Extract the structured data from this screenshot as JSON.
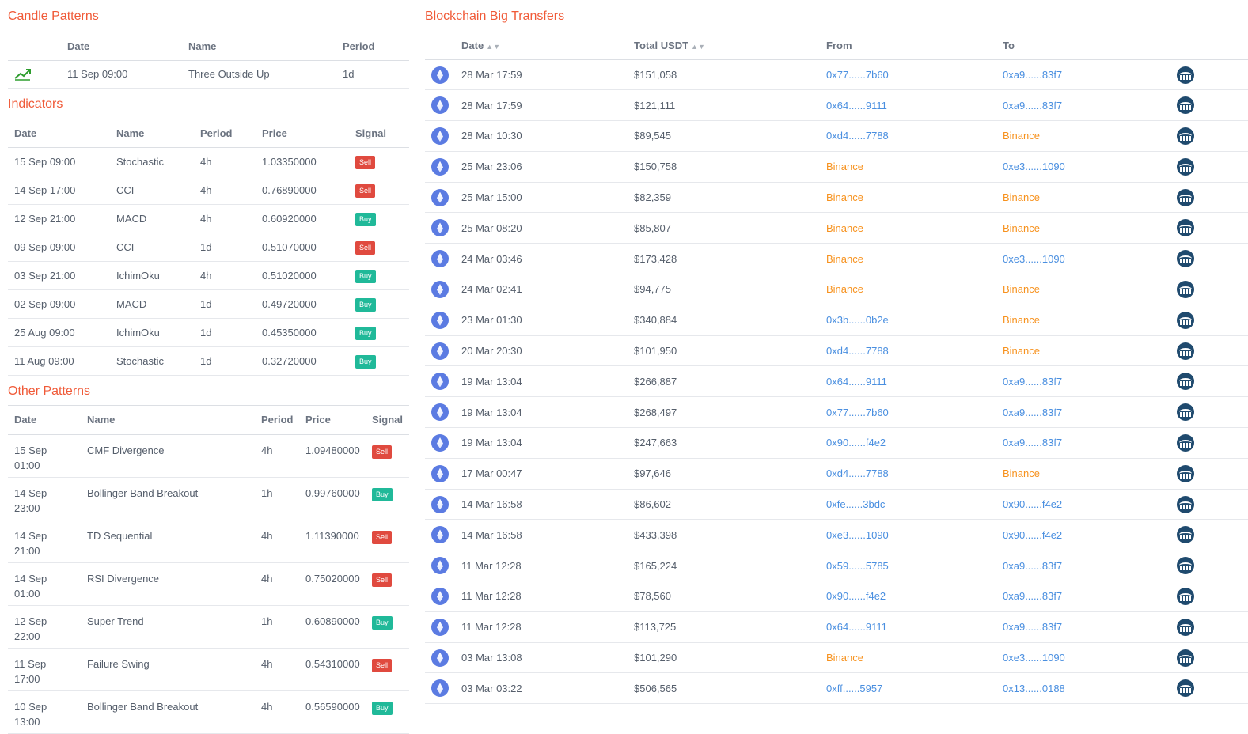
{
  "candle": {
    "title": "Candle Patterns",
    "headers": {
      "date": "Date",
      "name": "Name",
      "period": "Period"
    },
    "rows": [
      {
        "icon": "trend-up-icon",
        "date": "11 Sep 09:00",
        "name": "Three Outside Up",
        "period": "1d"
      }
    ]
  },
  "indicators": {
    "title": "Indicators",
    "headers": {
      "date": "Date",
      "name": "Name",
      "period": "Period",
      "price": "Price",
      "signal": "Signal"
    },
    "rows": [
      {
        "date": "15 Sep 09:00",
        "name": "Stochastic",
        "period": "4h",
        "price": "1.03350000",
        "signal": "Sell"
      },
      {
        "date": "14 Sep 17:00",
        "name": "CCI",
        "period": "4h",
        "price": "0.76890000",
        "signal": "Sell"
      },
      {
        "date": "12 Sep 21:00",
        "name": "MACD",
        "period": "4h",
        "price": "0.60920000",
        "signal": "Buy"
      },
      {
        "date": "09 Sep 09:00",
        "name": "CCI",
        "period": "1d",
        "price": "0.51070000",
        "signal": "Sell"
      },
      {
        "date": "03 Sep 21:00",
        "name": "IchimOku",
        "period": "4h",
        "price": "0.51020000",
        "signal": "Buy"
      },
      {
        "date": "02 Sep 09:00",
        "name": "MACD",
        "period": "1d",
        "price": "0.49720000",
        "signal": "Buy"
      },
      {
        "date": "25 Aug 09:00",
        "name": "IchimOku",
        "period": "1d",
        "price": "0.45350000",
        "signal": "Buy"
      },
      {
        "date": "11 Aug 09:00",
        "name": "Stochastic",
        "period": "1d",
        "price": "0.32720000",
        "signal": "Buy"
      }
    ]
  },
  "other": {
    "title": "Other Patterns",
    "headers": {
      "date": "Date",
      "name": "Name",
      "period": "Period",
      "price": "Price",
      "signal": "Signal"
    },
    "rows": [
      {
        "date": "15 Sep 01:00",
        "name": "CMF Divergence",
        "period": "4h",
        "price": "1.09480000",
        "signal": "Sell"
      },
      {
        "date": "14 Sep 23:00",
        "name": "Bollinger Band Breakout",
        "period": "1h",
        "price": "0.99760000",
        "signal": "Buy"
      },
      {
        "date": "14 Sep 21:00",
        "name": "TD Sequential",
        "period": "4h",
        "price": "1.11390000",
        "signal": "Sell"
      },
      {
        "date": "14 Sep 01:00",
        "name": "RSI Divergence",
        "period": "4h",
        "price": "0.75020000",
        "signal": "Sell"
      },
      {
        "date": "12 Sep 22:00",
        "name": "Super Trend",
        "period": "1h",
        "price": "0.60890000",
        "signal": "Buy"
      },
      {
        "date": "11 Sep 17:00",
        "name": "Failure Swing",
        "period": "4h",
        "price": "0.54310000",
        "signal": "Sell"
      },
      {
        "date": "10 Sep 13:00",
        "name": "Bollinger Band Breakout",
        "period": "4h",
        "price": "0.56590000",
        "signal": "Buy"
      }
    ]
  },
  "transfers": {
    "title": "Blockchain Big Transfers",
    "headers": {
      "date": "Date",
      "total": "Total USDT",
      "from": "From",
      "to": "To"
    },
    "rows": [
      {
        "date": "28 Mar 17:59",
        "total": "$151,058",
        "from": "0x77......7b60",
        "from_type": "addr",
        "to": "0xa9......83f7",
        "to_type": "addr"
      },
      {
        "date": "28 Mar 17:59",
        "total": "$121,111",
        "from": "0x64......9111",
        "from_type": "addr",
        "to": "0xa9......83f7",
        "to_type": "addr"
      },
      {
        "date": "28 Mar 10:30",
        "total": "$89,545",
        "from": "0xd4......7788",
        "from_type": "addr",
        "to": "Binance",
        "to_type": "exch"
      },
      {
        "date": "25 Mar 23:06",
        "total": "$150,758",
        "from": "Binance",
        "from_type": "exch",
        "to": "0xe3......1090",
        "to_type": "addr"
      },
      {
        "date": "25 Mar 15:00",
        "total": "$82,359",
        "from": "Binance",
        "from_type": "exch",
        "to": "Binance",
        "to_type": "exch"
      },
      {
        "date": "25 Mar 08:20",
        "total": "$85,807",
        "from": "Binance",
        "from_type": "exch",
        "to": "Binance",
        "to_type": "exch"
      },
      {
        "date": "24 Mar 03:46",
        "total": "$173,428",
        "from": "Binance",
        "from_type": "exch",
        "to": "0xe3......1090",
        "to_type": "addr"
      },
      {
        "date": "24 Mar 02:41",
        "total": "$94,775",
        "from": "Binance",
        "from_type": "exch",
        "to": "Binance",
        "to_type": "exch"
      },
      {
        "date": "23 Mar 01:30",
        "total": "$340,884",
        "from": "0x3b......0b2e",
        "from_type": "addr",
        "to": "Binance",
        "to_type": "exch"
      },
      {
        "date": "20 Mar 20:30",
        "total": "$101,950",
        "from": "0xd4......7788",
        "from_type": "addr",
        "to": "Binance",
        "to_type": "exch"
      },
      {
        "date": "19 Mar 13:04",
        "total": "$266,887",
        "from": "0x64......9111",
        "from_type": "addr",
        "to": "0xa9......83f7",
        "to_type": "addr"
      },
      {
        "date": "19 Mar 13:04",
        "total": "$268,497",
        "from": "0x77......7b60",
        "from_type": "addr",
        "to": "0xa9......83f7",
        "to_type": "addr"
      },
      {
        "date": "19 Mar 13:04",
        "total": "$247,663",
        "from": "0x90......f4e2",
        "from_type": "addr",
        "to": "0xa9......83f7",
        "to_type": "addr"
      },
      {
        "date": "17 Mar 00:47",
        "total": "$97,646",
        "from": "0xd4......7788",
        "from_type": "addr",
        "to": "Binance",
        "to_type": "exch"
      },
      {
        "date": "14 Mar 16:58",
        "total": "$86,602",
        "from": "0xfe......3bdc",
        "from_type": "addr",
        "to": "0x90......f4e2",
        "to_type": "addr"
      },
      {
        "date": "14 Mar 16:58",
        "total": "$433,398",
        "from": "0xe3......1090",
        "from_type": "addr",
        "to": "0x90......f4e2",
        "to_type": "addr"
      },
      {
        "date": "11 Mar 12:28",
        "total": "$165,224",
        "from": "0x59......5785",
        "from_type": "addr",
        "to": "0xa9......83f7",
        "to_type": "addr"
      },
      {
        "date": "11 Mar 12:28",
        "total": "$78,560",
        "from": "0x90......f4e2",
        "from_type": "addr",
        "to": "0xa9......83f7",
        "to_type": "addr"
      },
      {
        "date": "11 Mar 12:28",
        "total": "$113,725",
        "from": "0x64......9111",
        "from_type": "addr",
        "to": "0xa9......83f7",
        "to_type": "addr"
      },
      {
        "date": "03 Mar 13:08",
        "total": "$101,290",
        "from": "Binance",
        "from_type": "exch",
        "to": "0xe3......1090",
        "to_type": "addr"
      },
      {
        "date": "03 Mar 03:22",
        "total": "$506,565",
        "from": "0xff......5957",
        "from_type": "addr",
        "to": "0x13......0188",
        "to_type": "addr"
      }
    ]
  },
  "colors": {
    "accent": "#f05a38",
    "sell": "#e04a3f",
    "buy": "#20b999",
    "address": "#4a8fe0",
    "exchange": "#f7921e"
  }
}
